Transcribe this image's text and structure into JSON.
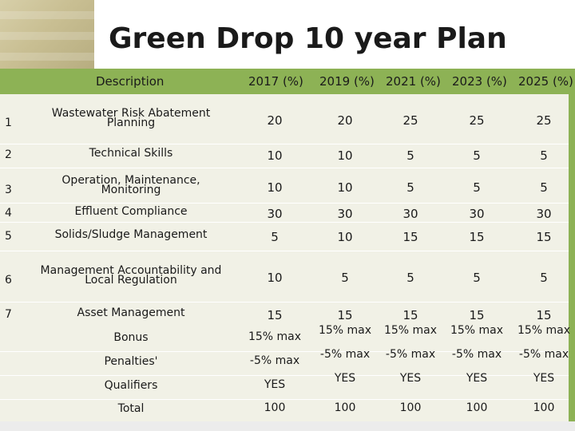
{
  "title": "Green Drop 10 year Plan",
  "columns": {
    "description": "Description",
    "years": [
      "2017 (%)",
      "2019 (%)",
      "2021 (%)",
      "2023 (%)",
      "2025 (%)"
    ]
  },
  "rows": [
    {
      "num": "1",
      "desc": [
        "Wastewater Risk Abatement",
        "Planning"
      ],
      "values": [
        "20",
        "20",
        "25",
        "25",
        "25"
      ]
    },
    {
      "num": "2",
      "desc": [
        "Technical Skills"
      ],
      "values": [
        "10",
        "10",
        "5",
        "5",
        "5"
      ]
    },
    {
      "num": "3",
      "desc": [
        "Operation, Maintenance,",
        "Monitoring"
      ],
      "values": [
        "10",
        "10",
        "5",
        "5",
        "5"
      ]
    },
    {
      "num": "4",
      "desc": [
        "Effluent Compliance"
      ],
      "values": [
        "30",
        "30",
        "30",
        "30",
        "30"
      ]
    },
    {
      "num": "5",
      "desc": [
        "Solids/Sludge Management"
      ],
      "values": [
        "5",
        "10",
        "15",
        "15",
        "15"
      ]
    },
    {
      "num": "6",
      "desc": [
        "Management Accountability and",
        "Local Regulation"
      ],
      "values": [
        "10",
        "5",
        "5",
        "5",
        "5"
      ]
    },
    {
      "num": "7",
      "desc": [
        "Asset Management"
      ],
      "values": [
        "15",
        "15",
        "15",
        "15",
        "15"
      ]
    }
  ],
  "extras": [
    {
      "label": "Bonus",
      "values": [
        "15% max",
        "15% max",
        "15% max",
        "15% max",
        "15% max"
      ]
    },
    {
      "label": "Penalties'",
      "values": [
        "-5% max",
        "-5% max",
        "-5% max",
        "-5% max",
        "-5% max"
      ]
    },
    {
      "label": "Qualifiers",
      "values": [
        "YES",
        "YES",
        "YES",
        "YES",
        "YES"
      ]
    },
    {
      "label": "Total",
      "values": [
        "100",
        "100",
        "100",
        "100",
        "100"
      ]
    }
  ]
}
